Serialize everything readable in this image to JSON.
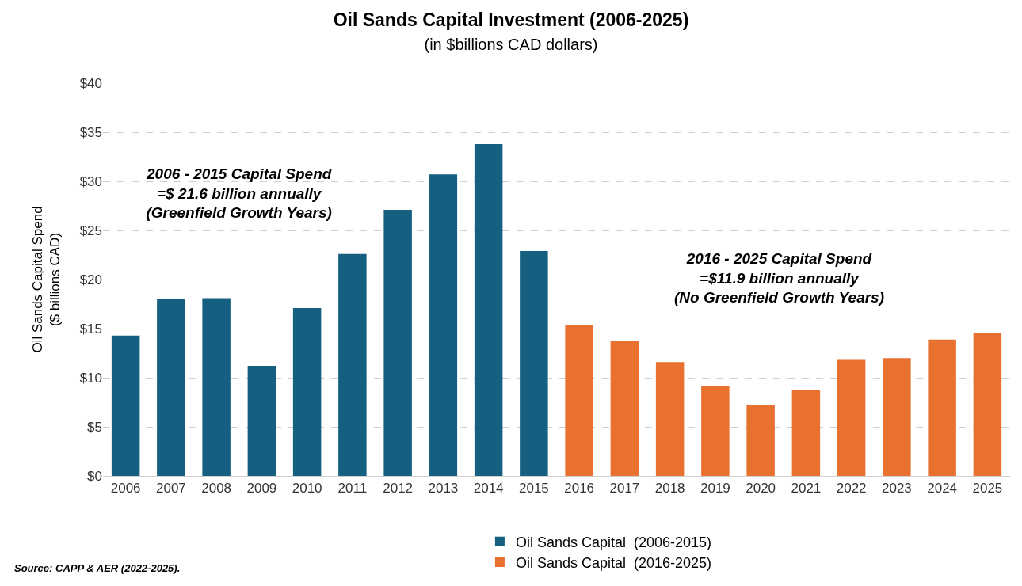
{
  "chart_data": {
    "type": "bar",
    "title": "Oil Sands Capital Investment (2006-2025)",
    "subtitle": "(in $billions CAD dollars)",
    "ylabel": "Oil Sands Capital Spend\n($ billions CAD)",
    "categories": [
      "2006",
      "2007",
      "2008",
      "2009",
      "2010",
      "2011",
      "2012",
      "2013",
      "2014",
      "2015",
      "2016",
      "2017",
      "2018",
      "2019",
      "2020",
      "2021",
      "2022",
      "2023",
      "2024",
      "2025"
    ],
    "series": [
      {
        "name": "Oil Sands Capital  (2006-2015)",
        "color": "#155f80",
        "values": [
          14.3,
          18.0,
          18.1,
          11.2,
          17.1,
          22.6,
          27.1,
          30.7,
          33.8,
          22.9,
          null,
          null,
          null,
          null,
          null,
          null,
          null,
          null,
          null,
          null
        ]
      },
      {
        "name": "Oil Sands Capital  (2016-2025)",
        "color": "#e87130",
        "values": [
          null,
          null,
          null,
          null,
          null,
          null,
          null,
          null,
          null,
          null,
          15.4,
          13.8,
          11.6,
          9.2,
          7.2,
          8.7,
          11.9,
          12.0,
          13.9,
          14.6
        ]
      }
    ],
    "ylim": [
      0,
      40
    ],
    "yticks": [
      {
        "value": 0,
        "label": "$0"
      },
      {
        "value": 5,
        "label": "$5"
      },
      {
        "value": 10,
        "label": "$10"
      },
      {
        "value": 15,
        "label": "$15"
      },
      {
        "value": 20,
        "label": "$20"
      },
      {
        "value": 25,
        "label": "$25"
      },
      {
        "value": 30,
        "label": "$30"
      },
      {
        "value": 35,
        "label": "$35"
      },
      {
        "value": 40,
        "label": "$40"
      }
    ],
    "grid": "y",
    "legend": "bottom",
    "annotations": [
      "2006 - 2015 Capital Spend\n=$ 21.6 billion annually\n(Greenfield Growth Years)",
      "2016 - 2025 Capital Spend\n=$11.9 billion annually\n(No Greenfield Growth Years)",
      "Source: CAPP & AER (2022-2025)."
    ]
  }
}
